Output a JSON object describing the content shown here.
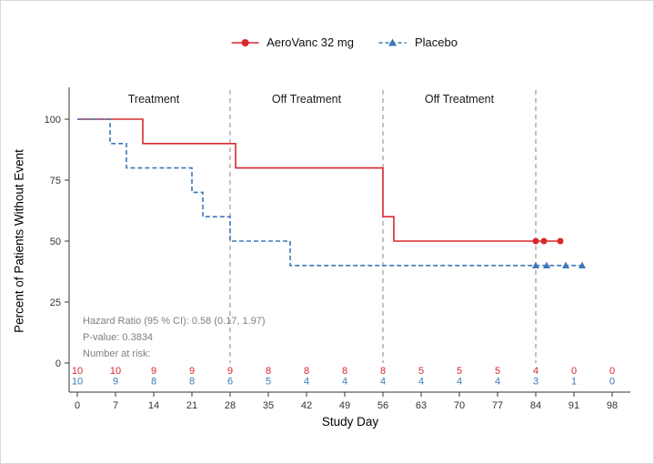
{
  "legend": {
    "items": [
      {
        "label": "AeroVanc 32 mg",
        "color": "#D7282A",
        "marker": "circle",
        "line": "solid"
      },
      {
        "label": "Placebo",
        "color": "#3B79B7",
        "marker": "triangle",
        "line": "dashed"
      }
    ]
  },
  "annotations": {
    "hazard_ratio": "Hazard Ratio (95 % CI): 0.58 (0.17, 1.97)",
    "p_value": "P-value: 0.3834",
    "at_risk_label": "Number at risk:"
  },
  "chart_data": {
    "type": "line",
    "subtype": "kaplan-meier-step",
    "title": "",
    "xlabel": "Study Day",
    "ylabel": "Percent of Patients Without Event",
    "xlim": [
      0,
      98
    ],
    "ylim": [
      0,
      100
    ],
    "x_ticks": [
      0,
      7,
      14,
      21,
      28,
      35,
      42,
      49,
      56,
      63,
      70,
      77,
      84,
      91,
      98
    ],
    "y_ticks": [
      0,
      25,
      50,
      75,
      100
    ],
    "grid": false,
    "legend_position": "top",
    "regions": [
      {
        "label": "Treatment",
        "center_day": 14
      },
      {
        "label": "Off Treatment",
        "center_day": 42
      },
      {
        "label": "Off Treatment",
        "center_day": 70
      }
    ],
    "reference_lines_x": [
      28,
      56,
      84
    ],
    "series": [
      {
        "name": "AeroVanc 32 mg",
        "color": "#D7282A",
        "line_style": "solid",
        "marker": "circle",
        "steps": [
          [
            0,
            100
          ],
          [
            12,
            100
          ],
          [
            12,
            90
          ],
          [
            29,
            90
          ],
          [
            29,
            80
          ],
          [
            56,
            80
          ],
          [
            56,
            60
          ],
          [
            58,
            60
          ],
          [
            58,
            50
          ],
          [
            88.5,
            50
          ]
        ],
        "censored": [
          [
            84,
            50
          ],
          [
            85.5,
            50
          ],
          [
            88.5,
            50
          ]
        ]
      },
      {
        "name": "Placebo",
        "color": "#3B79B7",
        "line_style": "dashed",
        "marker": "triangle",
        "steps": [
          [
            0,
            100
          ],
          [
            6,
            100
          ],
          [
            6,
            90
          ],
          [
            9,
            90
          ],
          [
            9,
            80
          ],
          [
            21,
            80
          ],
          [
            21,
            70
          ],
          [
            23,
            70
          ],
          [
            23,
            60
          ],
          [
            28,
            60
          ],
          [
            28,
            50
          ],
          [
            39,
            50
          ],
          [
            39,
            40
          ],
          [
            92.5,
            40
          ]
        ],
        "censored": [
          [
            84,
            40
          ],
          [
            86,
            40
          ],
          [
            89.5,
            40
          ],
          [
            92.5,
            40
          ]
        ]
      }
    ],
    "at_risk": {
      "days": [
        0,
        7,
        14,
        21,
        28,
        35,
        42,
        49,
        56,
        63,
        70,
        77,
        84,
        91,
        98
      ],
      "rows": [
        {
          "name": "AeroVanc 32 mg",
          "color": "#D7282A",
          "counts": [
            10,
            10,
            9,
            9,
            9,
            8,
            8,
            8,
            8,
            5,
            5,
            5,
            4,
            0,
            0
          ]
        },
        {
          "name": "Placebo",
          "color": "#3B79B7",
          "counts": [
            10,
            9,
            8,
            8,
            6,
            5,
            4,
            4,
            4,
            4,
            4,
            4,
            3,
            1,
            0
          ]
        }
      ]
    }
  }
}
